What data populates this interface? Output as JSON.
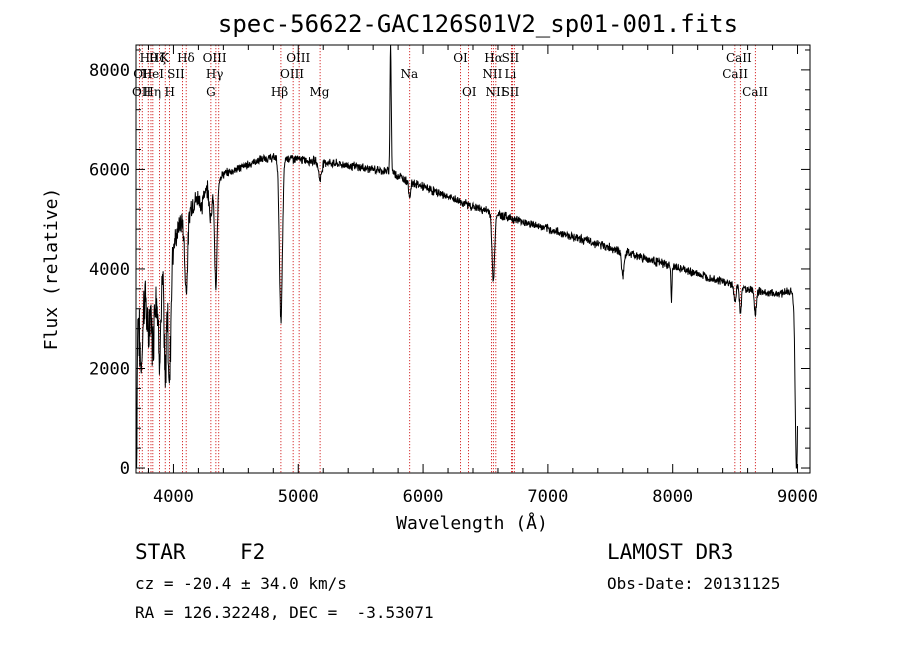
{
  "chart_data": {
    "type": "line",
    "title": "spec-56622-GAC126S01V2_sp01-001.fits",
    "xlabel": "Wavelength (Å)",
    "ylabel": "Flux (relative)",
    "xlim": [
      3700,
      9100
    ],
    "ylim": [
      -100,
      8500
    ],
    "xticks": [
      4000,
      5000,
      6000,
      7000,
      8000,
      9000
    ],
    "yticks": [
      0,
      2000,
      4000,
      6000,
      8000
    ],
    "tick_labels_x": [
      "4000",
      "5000",
      "6000",
      "7000",
      "8000",
      "9000"
    ],
    "tick_labels_y": [
      "0",
      "2000",
      "4000",
      "6000",
      "8000"
    ],
    "continuum": [
      [
        3700,
        3300
      ],
      [
        3760,
        3500
      ],
      [
        3820,
        3600
      ],
      [
        3880,
        3700
      ],
      [
        3950,
        4000
      ],
      [
        4050,
        4900
      ],
      [
        4150,
        5300
      ],
      [
        4250,
        5600
      ],
      [
        4400,
        5900
      ],
      [
        4550,
        6050
      ],
      [
        4700,
        6200
      ],
      [
        4850,
        6250
      ],
      [
        5000,
        6200
      ],
      [
        5200,
        6150
      ],
      [
        5400,
        6080
      ],
      [
        5600,
        6000
      ],
      [
        5750,
        5950
      ],
      [
        5850,
        5800
      ],
      [
        6000,
        5650
      ],
      [
        6200,
        5450
      ],
      [
        6400,
        5250
      ],
      [
        6600,
        5100
      ],
      [
        6800,
        4950
      ],
      [
        7000,
        4800
      ],
      [
        7200,
        4650
      ],
      [
        7400,
        4500
      ],
      [
        7600,
        4350
      ],
      [
        7800,
        4200
      ],
      [
        8000,
        4050
      ],
      [
        8200,
        3900
      ],
      [
        8400,
        3750
      ],
      [
        8600,
        3600
      ],
      [
        8800,
        3500
      ],
      [
        8950,
        3550
      ],
      [
        8985,
        3300
      ]
    ],
    "absorption_features": [
      {
        "wl": 3705,
        "depth": 3300,
        "width": 4
      },
      {
        "wl": 3740,
        "depth": 1400,
        "width": 12
      },
      {
        "wl": 3798,
        "depth": 1000,
        "width": 10
      },
      {
        "wl": 3835,
        "depth": 1100,
        "width": 10
      },
      {
        "wl": 3889,
        "depth": 1300,
        "width": 12
      },
      {
        "wl": 3934,
        "depth": 2300,
        "width": 8
      },
      {
        "wl": 3968,
        "depth": 2500,
        "width": 10
      },
      {
        "wl": 4102,
        "depth": 1500,
        "width": 12
      },
      {
        "wl": 4226,
        "depth": 400,
        "width": 8
      },
      {
        "wl": 4300,
        "depth": 700,
        "width": 10
      },
      {
        "wl": 4340,
        "depth": 2200,
        "width": 10
      },
      {
        "wl": 4861,
        "depth": 3300,
        "width": 12
      },
      {
        "wl": 5175,
        "depth": 350,
        "width": 12
      },
      {
        "wl": 5893,
        "depth": 300,
        "width": 8
      },
      {
        "wl": 6563,
        "depth": 1400,
        "width": 10
      },
      {
        "wl": 7600,
        "depth": 500,
        "width": 10
      },
      {
        "wl": 7990,
        "depth": 700,
        "width": 4
      },
      {
        "wl": 8498,
        "depth": 350,
        "width": 8
      },
      {
        "wl": 8542,
        "depth": 500,
        "width": 8
      },
      {
        "wl": 8662,
        "depth": 500,
        "width": 8
      },
      {
        "wl": 8992,
        "depth": 3400,
        "width": 10
      }
    ],
    "emission_features": [
      {
        "wl": 5740,
        "height": 2600,
        "width": 5
      }
    ],
    "line_markers": [
      {
        "wl": 3727,
        "label": "OII",
        "row": 2,
        "label_wl": 3755
      },
      {
        "wl": 3750,
        "label": "OII",
        "row": 3,
        "label_wl": 3745
      },
      {
        "wl": 3798,
        "label": "Hθ",
        "row": 1,
        "label_wl": 3800
      },
      {
        "wl": 3820,
        "label": "HeI",
        "row": 2,
        "label_wl": 3835
      },
      {
        "wl": 3835,
        "label": "Hη",
        "row": 3,
        "label_wl": 3830
      },
      {
        "wl": 3889,
        "label": "Hζ",
        "row": 1,
        "label_wl": 3872
      },
      {
        "wl": 3934,
        "label": "K",
        "row": 1,
        "label_wl": 3930
      },
      {
        "wl": 3968,
        "label": "H",
        "row": 3,
        "label_wl": 3970
      },
      {
        "wl": 4072,
        "label": "SII",
        "row": 2,
        "label_wl": 4020
      },
      {
        "wl": 4102,
        "label": "Hδ",
        "row": 1,
        "label_wl": 4100
      },
      {
        "wl": 4300,
        "label": "G",
        "row": 3,
        "label_wl": 4300
      },
      {
        "wl": 4340,
        "label": "Hγ",
        "row": 2,
        "label_wl": 4330
      },
      {
        "wl": 4363,
        "label": "OIII",
        "row": 1,
        "label_wl": 4330
      },
      {
        "wl": 4861,
        "label": "Hβ",
        "row": 3,
        "label_wl": 4850
      },
      {
        "wl": 4959,
        "label": "OIII",
        "row": 2,
        "label_wl": 4950
      },
      {
        "wl": 5007,
        "label": "OIII",
        "row": 1,
        "label_wl": 5000
      },
      {
        "wl": 5175,
        "label": "Mg",
        "row": 3,
        "label_wl": 5170
      },
      {
        "wl": 5893,
        "label": "Na",
        "row": 2,
        "label_wl": 5890
      },
      {
        "wl": 6300,
        "label": "OI",
        "row": 1,
        "label_wl": 6300
      },
      {
        "wl": 6364,
        "label": "OI",
        "row": 3,
        "label_wl": 6370
      },
      {
        "wl": 6548,
        "label": "NII",
        "row": 2,
        "label_wl": 6555
      },
      {
        "wl": 6563,
        "label": "Hα",
        "row": 1,
        "label_wl": 6565
      },
      {
        "wl": 6583,
        "label": "NII",
        "row": 3,
        "label_wl": 6580
      },
      {
        "wl": 6708,
        "label": "Li",
        "row": 2,
        "label_wl": 6700
      },
      {
        "wl": 6716,
        "label": "SII",
        "row": 1,
        "label_wl": 6700
      },
      {
        "wl": 6731,
        "label": "SII",
        "row": 3,
        "label_wl": 6700
      },
      {
        "wl": 8498,
        "label": "CaII",
        "row": 2,
        "label_wl": 8500
      },
      {
        "wl": 8542,
        "label": "CaII",
        "row": 1,
        "label_wl": 8530
      },
      {
        "wl": 8662,
        "label": "CaII",
        "row": 3,
        "label_wl": 8660
      }
    ],
    "colors": {
      "spectrum": "#000000",
      "markers": "#cc0000",
      "axes": "#000000"
    }
  },
  "info": {
    "class_label": "STAR",
    "subclass": "F2",
    "survey": "LAMOST DR3",
    "redshift": "cz = -20.4 ± 34.0 km/s",
    "obs_date": "Obs-Date: 20131125",
    "coords": "RA = 126.32248, DEC =  -3.53071"
  }
}
